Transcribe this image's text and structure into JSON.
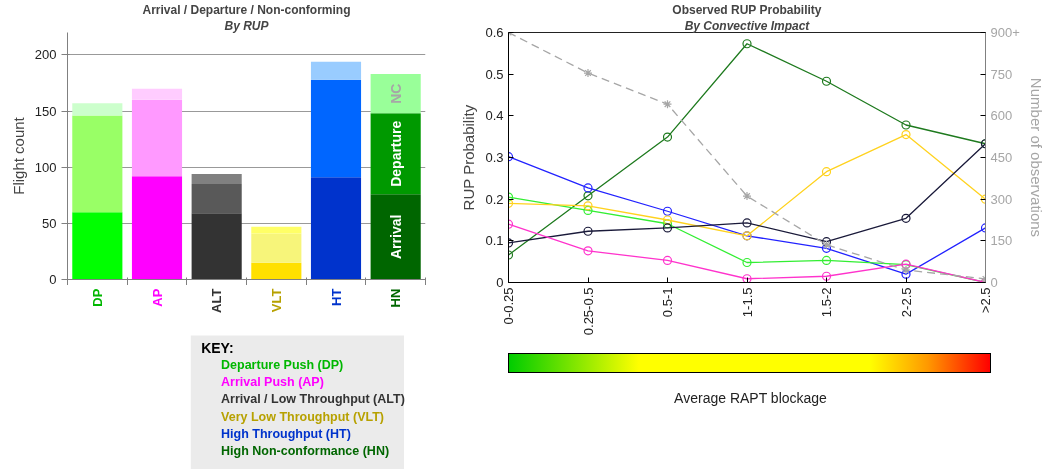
{
  "chart_data": [
    {
      "type": "bar",
      "stacked": true,
      "title": "Arrival / Departure / Non-conforming",
      "subtitle": "By RUP",
      "ylabel": "Flight count",
      "categories": [
        "DP",
        "AP",
        "ALT",
        "VLT",
        "HT",
        "HN"
      ],
      "series": [
        {
          "name": "Arrival",
          "colors": [
            "#00ff00",
            "#ff00ff",
            "#333333",
            "#ffe000",
            "#0033cc",
            "#006600"
          ],
          "values": [
            60,
            92,
            59,
            15,
            91,
            76
          ]
        },
        {
          "name": "Departure",
          "colors": [
            "#99ff66",
            "#ff99ff",
            "#595959",
            "#f7f57a",
            "#0066ff",
            "#009900"
          ],
          "values": [
            86,
            68,
            26,
            26,
            87,
            72
          ]
        },
        {
          "name": "NC",
          "colors": [
            "#ccffcc",
            "#ffccff",
            "#808080",
            "#ffff66",
            "#99ccff",
            "#99ff99"
          ],
          "values": [
            11,
            10,
            9,
            6,
            16,
            35
          ]
        }
      ],
      "ylim": [
        0,
        220
      ],
      "yticks": [
        0,
        50,
        100,
        150,
        200
      ],
      "grid": "y",
      "annotations": [
        "KEY:",
        "Departure Push (DP)",
        "Arrival Push (AP)",
        "Arrival / Low Throughput (ALT)",
        "Very Low Throughput (VLT)",
        "High Throughput (HT)",
        "High Non-conformance (HN)"
      ]
    },
    {
      "type": "line",
      "title": "Observed RUP Probability",
      "subtitle": "By Convective Impact",
      "ylabel": "RUP Probability",
      "y2label": "Number of observations",
      "clabel": "Average RAPT blockage",
      "categories": [
        "0-0.25",
        "0.25-0.5",
        "0.5-1",
        "1-1.5",
        "1.5-2",
        "2-2.5",
        ">2.5"
      ],
      "marker": "circle",
      "series": [
        {
          "color": "#1e7a1e",
          "values": [
            0.066,
            0.208,
            0.349,
            0.573,
            0.483,
            0.378,
            0.333
          ]
        },
        {
          "color": "#2222ff",
          "values": [
            0.302,
            0.227,
            0.171,
            0.112,
            0.082,
            0.02,
            0.131
          ]
        },
        {
          "color": "#33ee33",
          "values": [
            0.205,
            0.173,
            0.141,
            0.048,
            0.053,
            0.043,
            0
          ]
        },
        {
          "color": "#ffd21e",
          "values": [
            0.19,
            0.184,
            0.15,
            0.112,
            0.266,
            0.355,
            0.2
          ]
        },
        {
          "color": "#1a1a3a",
          "values": [
            0.095,
            0.123,
            0.131,
            0.143,
            0.098,
            0.154,
            0.333
          ]
        },
        {
          "color": "#ff33cc",
          "values": [
            0.14,
            0.076,
            0.053,
            0.009,
            0.015,
            0.044,
            0
          ]
        },
        {
          "color": "#a6a6a6",
          "values": [
            900,
            754,
            642,
            311,
            136,
            45,
            13
          ],
          "axis": "y2",
          "line_style": "dashed",
          "marker": "cross"
        }
      ],
      "ylim": [
        0,
        0.6
      ],
      "yticks": [
        0,
        0.1,
        0.2,
        0.3,
        0.4,
        0.5,
        0.6
      ],
      "y2lim": [
        0,
        900
      ],
      "y2ticks": [
        0,
        150,
        300,
        450,
        600,
        750,
        {
          "value": 900,
          "label": "900+"
        }
      ]
    }
  ]
}
